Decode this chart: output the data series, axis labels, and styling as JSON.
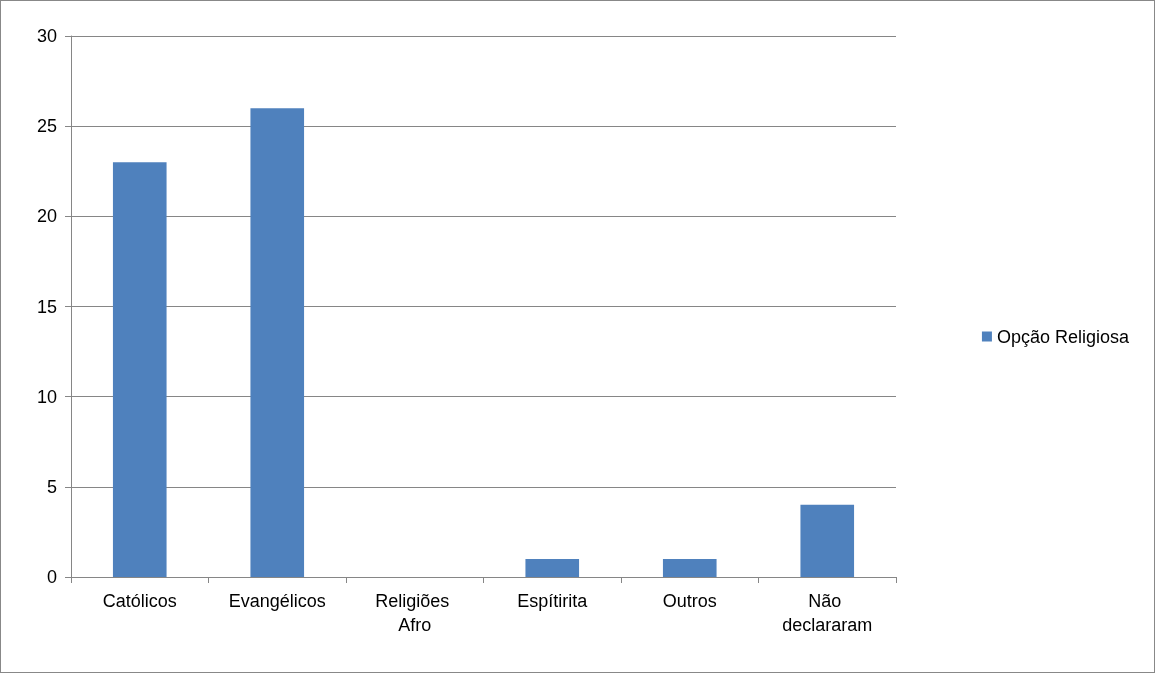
{
  "chart_data": {
    "type": "bar",
    "categories": [
      "Católicos",
      "Evangélicos",
      "Religiões Afro",
      "Espítirita",
      "Outros",
      "Não declararam"
    ],
    "series": [
      {
        "name": "Opção Religiosa",
        "color": "#4f81bd",
        "values": [
          23,
          26,
          0,
          1,
          1,
          4
        ]
      }
    ],
    "ylim": [
      0,
      30
    ],
    "yticks": [
      0,
      5,
      10,
      15,
      20,
      25,
      30
    ],
    "grid": "y",
    "legend": "right"
  }
}
